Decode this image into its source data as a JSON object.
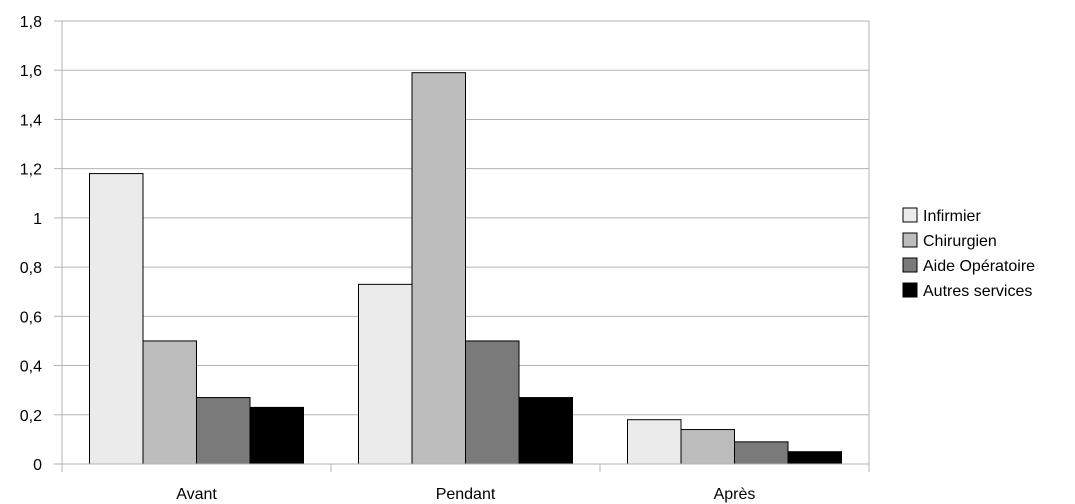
{
  "chart_data": {
    "type": "bar",
    "title": "",
    "xlabel": "",
    "ylabel": "",
    "categories": [
      "Avant",
      "Pendant",
      "Après"
    ],
    "series": [
      {
        "name": "Infirmier",
        "values": [
          1.18,
          0.73,
          0.18
        ],
        "color": "#ebebeb"
      },
      {
        "name": "Chirurgien",
        "values": [
          0.5,
          1.59,
          0.14
        ],
        "color": "#bcbcbc"
      },
      {
        "name": "Aide Opératoire",
        "values": [
          0.27,
          0.5,
          0.09
        ],
        "color": "#7a7a7a"
      },
      {
        "name": "Autres services",
        "values": [
          0.23,
          0.27,
          0.05
        ],
        "color": "#000000"
      }
    ],
    "ylim": [
      0,
      1.8
    ],
    "yticks": [
      "0",
      "0,2",
      "0,4",
      "0,6",
      "0,8",
      "1",
      "1,2",
      "1,4",
      "1,6",
      "1,8"
    ],
    "grid": true,
    "legend_position": "right"
  }
}
